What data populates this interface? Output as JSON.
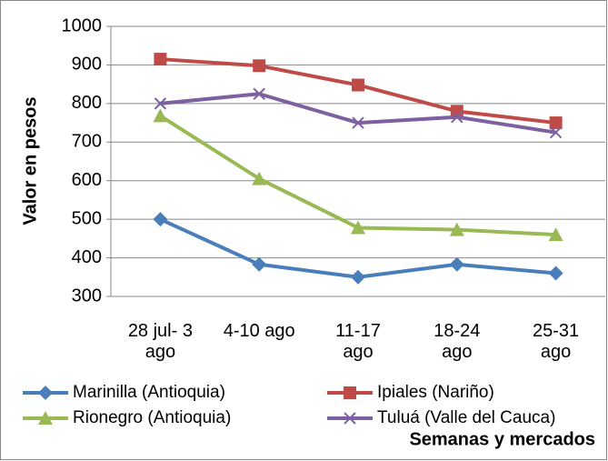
{
  "chart_data": {
    "type": "line",
    "y_label": "Valor en pesos",
    "x_label": "Semanas y mercados",
    "categories": [
      "28 jul- 3\nago",
      "4-10 ago",
      "11-17\nago",
      "18-24\nago",
      "25-31\nago"
    ],
    "series": [
      {
        "name": "Marinilla (Antioquia)",
        "color": "#4a7ebb",
        "marker": "diamond",
        "values": [
          500,
          383,
          350,
          383,
          360
        ]
      },
      {
        "name": "Ipiales (Nariño)",
        "color": "#be4b48",
        "marker": "square",
        "values": [
          915,
          898,
          848,
          780,
          750
        ]
      },
      {
        "name": "Rionegro (Antioquia)",
        "color": "#98b954",
        "marker": "triangle",
        "values": [
          768,
          605,
          478,
          473,
          460
        ]
      },
      {
        "name": "Tuluá (Valle del Cauca)",
        "color": "#7d60a0",
        "marker": "x",
        "values": [
          800,
          825,
          750,
          765,
          725
        ]
      }
    ],
    "ylim": [
      300,
      1000
    ],
    "yticks": [
      300,
      400,
      500,
      600,
      700,
      800,
      900,
      1000
    ],
    "grid": true,
    "legend": "bottom"
  }
}
